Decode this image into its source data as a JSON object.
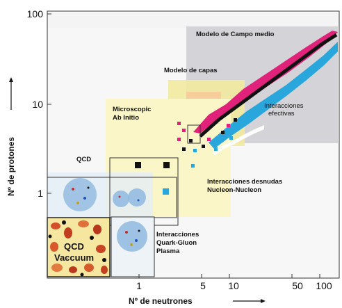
{
  "axes": {
    "x_title": "Nº de neutrones",
    "y_title": "Nº de protones",
    "x_ticks": [
      "1",
      "5",
      "10",
      "50",
      "100"
    ],
    "y_ticks": [
      "1",
      "10",
      "100"
    ],
    "scale": "log",
    "x_range": [
      0.15,
      130
    ],
    "y_range": [
      0.25,
      115
    ]
  },
  "regions": {
    "campo_medio": "Modelo de Campo medio",
    "capas": "Modelo de capas",
    "efectivas_line1": "Interacciones",
    "efectivas_line2": "efectivas",
    "ab_initio_line1": "Microscopic",
    "ab_initio_line2": "Ab Initio",
    "qcd": "QCD",
    "desnudas_line1": "Interacciones desnudas",
    "desnudas_line2": "Nucleon-Nucleon",
    "quark_gluon_line1": "Interacciones",
    "quark_gluon_line2": "Quark-Gluon",
    "quark_gluon_line3": "Plasma",
    "vacuum_line1": "QCD",
    "vacuum_line2": "Vaccuum"
  },
  "colors": {
    "mean_field_bg": "#d4d4d8",
    "shell_bg": "#f2eaa0",
    "ab_initio_bg": "#fbf6c8",
    "proton_rich": "#e0227a",
    "neutron_rich": "#29a6dc",
    "stable": "#111111",
    "light_blue_region": "#dbe6ee"
  }
}
